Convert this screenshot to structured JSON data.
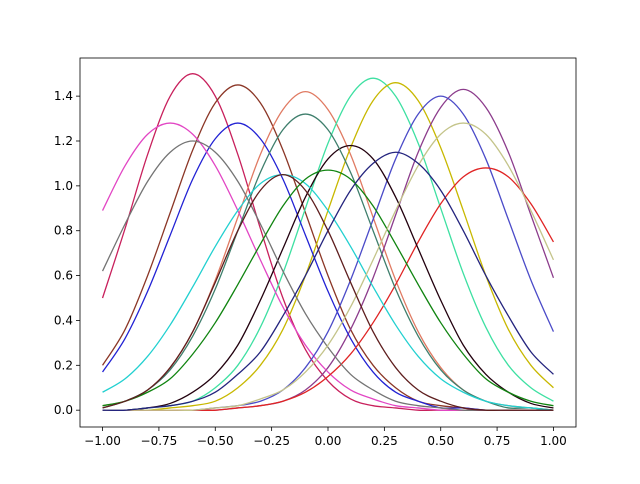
{
  "chart_data": {
    "type": "line",
    "x": [
      -1.0,
      -0.9,
      -0.8,
      -0.7,
      -0.6,
      -0.5,
      -0.4,
      -0.3,
      -0.2,
      -0.1,
      0.0,
      0.1,
      0.2,
      0.3,
      0.4,
      0.5,
      0.6,
      0.7,
      0.8,
      0.9,
      1.0
    ],
    "xlim": [
      -1.1,
      1.1
    ],
    "ylim": [
      -0.075,
      1.57
    ],
    "xticks": [
      {
        "value": -1.0,
        "label": "−1.00"
      },
      {
        "value": -0.75,
        "label": "−0.75"
      },
      {
        "value": -0.5,
        "label": "−0.50"
      },
      {
        "value": -0.25,
        "label": "−0.25"
      },
      {
        "value": 0.0,
        "label": "0.00"
      },
      {
        "value": 0.25,
        "label": "0.25"
      },
      {
        "value": 0.5,
        "label": "0.50"
      },
      {
        "value": 0.75,
        "label": "0.75"
      },
      {
        "value": 1.0,
        "label": "1.00"
      }
    ],
    "yticks": [
      {
        "value": 0.0,
        "label": "0.0"
      },
      {
        "value": 0.2,
        "label": "0.2"
      },
      {
        "value": 0.4,
        "label": "0.4"
      },
      {
        "value": 0.6,
        "label": "0.6"
      },
      {
        "value": 0.8,
        "label": "0.8"
      },
      {
        "value": 1.0,
        "label": "1.0"
      },
      {
        "value": 1.2,
        "label": "1.2"
      },
      {
        "value": 1.4,
        "label": "1.4"
      }
    ],
    "grid": false,
    "series": [
      {
        "color": "#c8205c",
        "values": [
          0.5,
          0.81,
          1.14,
          1.4,
          1.5,
          1.4,
          1.14,
          0.81,
          0.5,
          0.27,
          0.13,
          0.05,
          0.02,
          0.01,
          0,
          0,
          0,
          0,
          0,
          0,
          0
        ]
      },
      {
        "color": "#8b3626",
        "values": [
          0.2,
          0.36,
          0.6,
          0.88,
          1.16,
          1.37,
          1.45,
          1.37,
          1.16,
          0.88,
          0.6,
          0.36,
          0.2,
          0.1,
          0.04,
          0.02,
          0.01,
          0,
          0,
          0,
          0
        ]
      },
      {
        "color": "#e07a62",
        "values": [
          0.02,
          0.04,
          0.09,
          0.19,
          0.35,
          0.58,
          0.86,
          1.14,
          1.34,
          1.42,
          1.34,
          1.14,
          0.86,
          0.58,
          0.35,
          0.19,
          0.09,
          0.04,
          0.02,
          0.01,
          0
        ]
      },
      {
        "color": "#3ee0a2",
        "values": [
          0,
          0,
          0.01,
          0.02,
          0.04,
          0.1,
          0.2,
          0.37,
          0.61,
          0.9,
          1.19,
          1.4,
          1.48,
          1.4,
          1.19,
          0.9,
          0.61,
          0.37,
          0.2,
          0.1,
          0.04
        ]
      },
      {
        "color": "#c8b800",
        "values": [
          0,
          0,
          0,
          0.01,
          0.02,
          0.04,
          0.1,
          0.2,
          0.36,
          0.6,
          0.89,
          1.17,
          1.38,
          1.46,
          1.38,
          1.17,
          0.89,
          0.6,
          0.36,
          0.2,
          0.1
        ]
      },
      {
        "color": "#8c3c8c",
        "values": [
          0,
          0,
          0,
          0,
          0,
          0,
          0.01,
          0.02,
          0.04,
          0.09,
          0.19,
          0.36,
          0.59,
          0.87,
          1.15,
          1.35,
          1.43,
          1.35,
          1.15,
          0.87,
          0.59
        ]
      },
      {
        "color": "#2222d4",
        "values": [
          0.17,
          0.32,
          0.53,
          0.78,
          1.03,
          1.21,
          1.28,
          1.21,
          1.03,
          0.78,
          0.53,
          0.32,
          0.17,
          0.08,
          0.04,
          0.01,
          0.01,
          0,
          0,
          0,
          0
        ]
      },
      {
        "color": "#e246c4",
        "values": [
          0.89,
          1.09,
          1.23,
          1.28,
          1.23,
          1.09,
          0.89,
          0.67,
          0.46,
          0.29,
          0.17,
          0.09,
          0.05,
          0.02,
          0.01,
          0,
          0,
          0,
          0,
          0,
          0
        ]
      },
      {
        "color": "#4b4bc8",
        "values": [
          0,
          0,
          0,
          0,
          0,
          0.01,
          0.02,
          0.04,
          0.09,
          0.19,
          0.35,
          0.58,
          0.85,
          1.12,
          1.32,
          1.4,
          1.32,
          1.12,
          0.85,
          0.58,
          0.35
        ]
      },
      {
        "color": "#e02424",
        "values": [
          0,
          0,
          0,
          0,
          0,
          0,
          0.01,
          0.02,
          0.04,
          0.08,
          0.15,
          0.25,
          0.39,
          0.56,
          0.75,
          0.92,
          1.04,
          1.08,
          1.04,
          0.92,
          0.75
        ]
      },
      {
        "color": "#22000e",
        "values": [
          0,
          0,
          0.01,
          0.03,
          0.08,
          0.16,
          0.29,
          0.49,
          0.72,
          0.95,
          1.12,
          1.18,
          1.12,
          0.95,
          0.72,
          0.49,
          0.29,
          0.16,
          0.08,
          0.03,
          0.01
        ]
      },
      {
        "color": "#3e7e6c",
        "values": [
          0.01,
          0.04,
          0.09,
          0.18,
          0.33,
          0.54,
          0.8,
          1.06,
          1.25,
          1.32,
          1.25,
          1.06,
          0.8,
          0.54,
          0.33,
          0.18,
          0.09,
          0.04,
          0.01,
          0.01,
          0
        ]
      },
      {
        "color": "#22d0d0",
        "values": [
          0.08,
          0.14,
          0.24,
          0.38,
          0.55,
          0.73,
          0.89,
          1.01,
          1.05,
          1.01,
          0.89,
          0.73,
          0.55,
          0.38,
          0.24,
          0.14,
          0.08,
          0.04,
          0.02,
          0.01,
          0
        ]
      },
      {
        "color": "#747474",
        "values": [
          0.62,
          0.83,
          1.02,
          1.15,
          1.2,
          1.15,
          1.02,
          0.83,
          0.62,
          0.43,
          0.28,
          0.16,
          0.09,
          0.04,
          0.02,
          0.01,
          0,
          0,
          0,
          0,
          0
        ]
      },
      {
        "color": "#108410",
        "values": [
          0.02,
          0.04,
          0.08,
          0.14,
          0.25,
          0.39,
          0.56,
          0.74,
          0.91,
          1.03,
          1.07,
          1.03,
          0.91,
          0.74,
          0.56,
          0.39,
          0.25,
          0.14,
          0.08,
          0.04,
          0.02
        ]
      },
      {
        "color": "#c4c48a",
        "values": [
          0,
          0,
          0,
          0,
          0,
          0.01,
          0.02,
          0.05,
          0.09,
          0.17,
          0.29,
          0.46,
          0.67,
          0.89,
          1.09,
          1.23,
          1.28,
          1.23,
          1.09,
          0.89,
          0.67
        ]
      },
      {
        "color": "#24247e",
        "values": [
          0,
          0,
          0.01,
          0.02,
          0.04,
          0.08,
          0.16,
          0.26,
          0.42,
          0.6,
          0.8,
          0.98,
          1.1,
          1.15,
          1.1,
          0.98,
          0.8,
          0.6,
          0.42,
          0.26,
          0.16
        ]
      },
      {
        "color": "#5e1e1e",
        "values": [
          0.01,
          0.04,
          0.09,
          0.19,
          0.35,
          0.57,
          0.8,
          0.98,
          1.05,
          0.98,
          0.8,
          0.57,
          0.35,
          0.19,
          0.09,
          0.04,
          0.01,
          0,
          0,
          0,
          0
        ]
      }
    ]
  }
}
